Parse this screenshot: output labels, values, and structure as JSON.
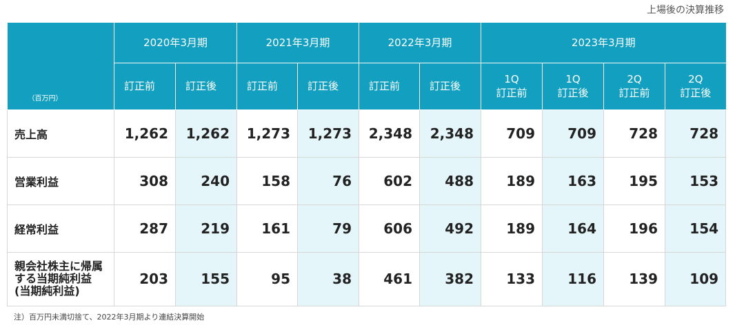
{
  "caption": "上場後の決算推移",
  "unit": "（百万円）",
  "years": [
    "2020年3月期",
    "2021年3月期",
    "2022年3月期",
    "2023年3月期"
  ],
  "subheaders": [
    [
      "訂正前"
    ],
    [
      "訂正後"
    ],
    [
      "訂正前"
    ],
    [
      "訂正後"
    ],
    [
      "訂正前"
    ],
    [
      "訂正後"
    ],
    [
      "1Q",
      "訂正前"
    ],
    [
      "1Q",
      "訂正後"
    ],
    [
      "2Q",
      "訂正前"
    ],
    [
      "2Q",
      "訂正後"
    ]
  ],
  "rows": [
    {
      "label": [
        "売上高"
      ],
      "values": [
        "1,262",
        "1,262",
        "1,273",
        "1,273",
        "2,348",
        "2,348",
        "709",
        "709",
        "728",
        "728"
      ]
    },
    {
      "label": [
        "営業利益"
      ],
      "values": [
        "308",
        "240",
        "158",
        "76",
        "602",
        "488",
        "189",
        "163",
        "195",
        "153"
      ]
    },
    {
      "label": [
        "経常利益"
      ],
      "values": [
        "287",
        "219",
        "161",
        "79",
        "606",
        "492",
        "189",
        "164",
        "196",
        "154"
      ]
    },
    {
      "label": [
        "親会社株主に帰属",
        "する当期純利益",
        "(当期純利益)"
      ],
      "values": [
        "203",
        "155",
        "95",
        "38",
        "461",
        "382",
        "133",
        "116",
        "139",
        "109"
      ]
    }
  ],
  "note": "注）百万円未満切捨て、2022年3月期より連結決算開始",
  "colors": {
    "header": "#13a0c0",
    "alt_column": "#e5f6fb"
  }
}
